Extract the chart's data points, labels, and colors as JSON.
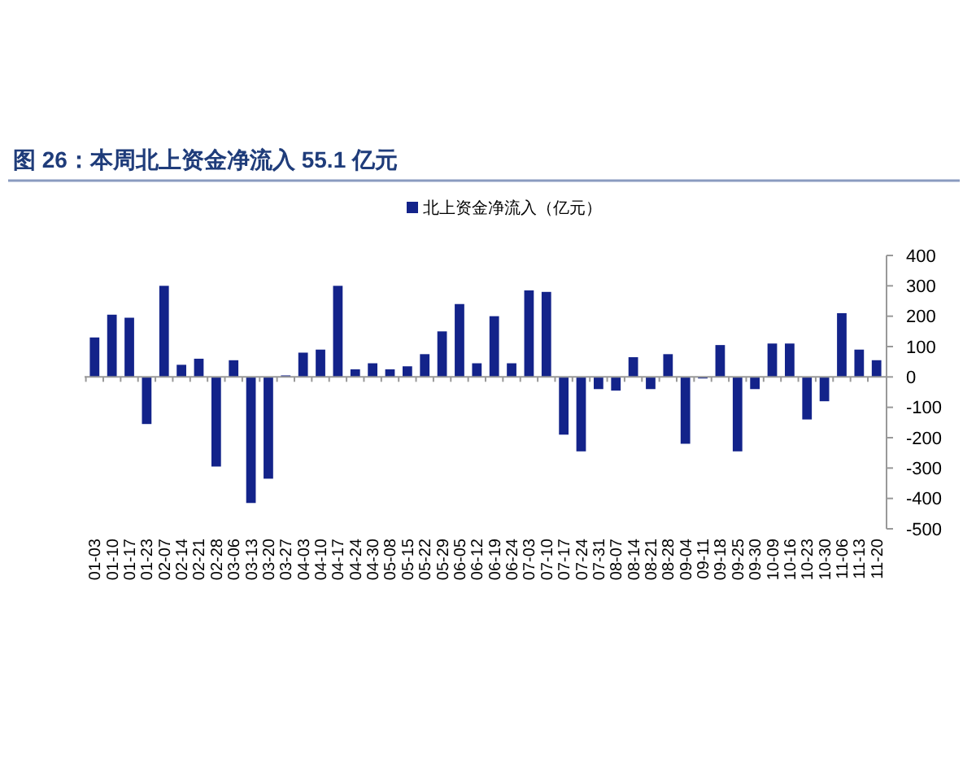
{
  "chart_data": {
    "type": "bar",
    "title": "图 26：本周北上资金净流入 55.1 亿元",
    "categories": [
      "01-03",
      "01-10",
      "01-17",
      "01-23",
      "02-07",
      "02-14",
      "02-21",
      "02-28",
      "03-06",
      "03-13",
      "03-20",
      "03-27",
      "04-03",
      "04-10",
      "04-17",
      "04-24",
      "04-30",
      "05-08",
      "05-15",
      "05-22",
      "05-29",
      "06-05",
      "06-12",
      "06-19",
      "06-24",
      "07-03",
      "07-10",
      "07-17",
      "07-24",
      "07-31",
      "08-07",
      "08-14",
      "08-21",
      "08-28",
      "09-04",
      "09-11",
      "09-18",
      "09-25",
      "09-30",
      "10-09",
      "10-16",
      "10-23",
      "10-30",
      "11-06",
      "11-13",
      "11-20"
    ],
    "series": [
      {
        "name": "北上资金净流入（亿元）",
        "color": "#13238a",
        "values": [
          130,
          205,
          195,
          -155,
          300,
          40,
          60,
          -295,
          55,
          -415,
          -335,
          5,
          80,
          90,
          300,
          25,
          45,
          25,
          35,
          75,
          150,
          240,
          45,
          200,
          45,
          285,
          280,
          -190,
          -245,
          -40,
          -45,
          65,
          -40,
          75,
          -220,
          -5,
          105,
          -245,
          -40,
          110,
          110,
          -140,
          -80,
          210,
          90,
          55.1
        ]
      }
    ],
    "ylim": [
      -500,
      400
    ],
    "yticks": [
      -500,
      -400,
      -300,
      -200,
      -100,
      0,
      100,
      200,
      300,
      400
    ],
    "legend": "top"
  }
}
